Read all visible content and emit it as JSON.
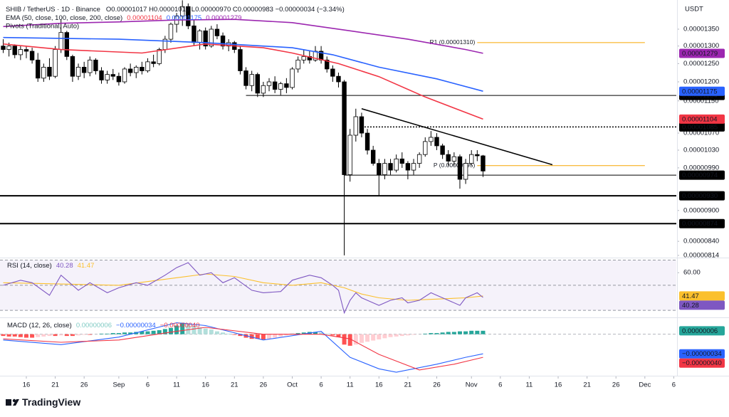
{
  "chart_data": [
    {
      "type": "candlestick",
      "title": "SHIB / TetherUS · 1D · Binance",
      "ohlc_text": "O0.00001017 H0.00001019 L0.00000970 C0.00000983 −0.00000034 (−3.34%)",
      "ema_label": "EMA (50, close, 100, close, 200, close)",
      "pivots_label": "Pivots (Traditional, Auto)",
      "currency": "USDT",
      "log_scale": true,
      "up_color": "#ffffff",
      "down_color": "#000000",
      "ylim": [
        8.1e-06,
        1.441e-05
      ],
      "yticks": [
        {
          "value": 1.35e-05,
          "label": "0.00001350"
        },
        {
          "value": 1.3e-05,
          "label": "0.00001300"
        },
        {
          "value": 1.25e-05,
          "label": "0.00001250"
        },
        {
          "value": 1.2e-05,
          "label": "0.00001200"
        },
        {
          "value": 1.15e-05,
          "label": "0.00001150"
        },
        {
          "value": 1.07e-05,
          "label": "0.00001070"
        },
        {
          "value": 1.03e-05,
          "label": "0.00001030"
        },
        {
          "value": 9.9e-06,
          "label": "0.00000990"
        },
        {
          "value": 9e-06,
          "label": "0.00000900"
        },
        {
          "value": 8.4e-06,
          "label": "0.00000840"
        },
        {
          "value": 8.14e-06,
          "label": "0.00000814"
        }
      ],
      "xticks": [
        {
          "value": 4,
          "label": "16"
        },
        {
          "value": 9,
          "label": "21"
        },
        {
          "value": 14,
          "label": "26"
        },
        {
          "value": 20,
          "label": "Sep"
        },
        {
          "value": 25,
          "label": "6"
        },
        {
          "value": 30,
          "label": "11"
        },
        {
          "value": 35,
          "label": "16"
        },
        {
          "value": 40,
          "label": "21"
        },
        {
          "value": 45,
          "label": "26"
        },
        {
          "value": 50,
          "label": "Oct"
        },
        {
          "value": 55,
          "label": "6"
        },
        {
          "value": 60,
          "label": "11"
        },
        {
          "value": 65,
          "label": "16"
        },
        {
          "value": 70,
          "label": "21"
        },
        {
          "value": 75,
          "label": "26"
        },
        {
          "value": 81,
          "label": "Nov"
        },
        {
          "value": 86,
          "label": "6"
        },
        {
          "value": 91,
          "label": "11"
        },
        {
          "value": 96,
          "label": "16"
        },
        {
          "value": 101,
          "label": "21"
        },
        {
          "value": 106,
          "label": "26"
        },
        {
          "value": 111,
          "label": "Dec"
        },
        {
          "value": 116,
          "label": "6"
        }
      ],
      "candles": [
        [
          1.3e-05,
          1.32e-05,
          1.28e-05,
          1.29e-05
        ],
        [
          1.29e-05,
          1.31e-05,
          1.27e-05,
          1.3e-05
        ],
        [
          1.3e-05,
          1.305e-05,
          1.265e-05,
          1.275e-05
        ],
        [
          1.275e-05,
          1.3e-05,
          1.26e-05,
          1.29e-05
        ],
        [
          1.29e-05,
          1.3e-05,
          1.265e-05,
          1.285e-05
        ],
        [
          1.285e-05,
          1.295e-05,
          1.25e-05,
          1.26e-05
        ],
        [
          1.26e-05,
          1.28e-05,
          1.2e-05,
          1.21e-05
        ],
        [
          1.21e-05,
          1.25e-05,
          1.2e-05,
          1.24e-05
        ],
        [
          1.24e-05,
          1.265e-05,
          1.205e-05,
          1.215e-05
        ],
        [
          1.215e-05,
          1.3e-05,
          1.21e-05,
          1.29e-05
        ],
        [
          1.29e-05,
          1.38e-05,
          1.28e-05,
          1.34e-05
        ],
        [
          1.34e-05,
          1.345e-05,
          1.26e-05,
          1.27e-05
        ],
        [
          1.27e-05,
          1.275e-05,
          1.2e-05,
          1.215e-05
        ],
        [
          1.215e-05,
          1.25e-05,
          1.205e-05,
          1.24e-05
        ],
        [
          1.24e-05,
          1.255e-05,
          1.21e-05,
          1.225e-05
        ],
        [
          1.225e-05,
          1.27e-05,
          1.215e-05,
          1.26e-05
        ],
        [
          1.26e-05,
          1.265e-05,
          1.22e-05,
          1.23e-05
        ],
        [
          1.23e-05,
          1.24e-05,
          1.195e-05,
          1.205e-05
        ],
        [
          1.205e-05,
          1.23e-05,
          1.195e-05,
          1.22e-05
        ],
        [
          1.22e-05,
          1.235e-05,
          1.205e-05,
          1.215e-05
        ],
        [
          1.215e-05,
          1.225e-05,
          1.19e-05,
          1.2e-05
        ],
        [
          1.2e-05,
          1.24e-05,
          1.195e-05,
          1.235e-05
        ],
        [
          1.235e-05,
          1.25e-05,
          1.215e-05,
          1.225e-05
        ],
        [
          1.225e-05,
          1.245e-05,
          1.21e-05,
          1.24e-05
        ],
        [
          1.24e-05,
          1.255e-05,
          1.22e-05,
          1.23e-05
        ],
        [
          1.23e-05,
          1.265e-05,
          1.225e-05,
          1.255e-05
        ],
        [
          1.255e-05,
          1.275e-05,
          1.24e-05,
          1.25e-05
        ],
        [
          1.25e-05,
          1.295e-05,
          1.245e-05,
          1.29e-05
        ],
        [
          1.29e-05,
          1.33e-05,
          1.28e-05,
          1.32e-05
        ],
        [
          1.32e-05,
          1.37e-05,
          1.31e-05,
          1.365e-05
        ],
        [
          1.365e-05,
          1.4e-05,
          1.34e-05,
          1.39e-05
        ],
        [
          1.39e-05,
          1.44e-05,
          1.36e-05,
          1.42e-05
        ],
        [
          1.42e-05,
          1.43e-05,
          1.35e-05,
          1.36e-05
        ],
        [
          1.36e-05,
          1.38e-05,
          1.3e-05,
          1.31e-05
        ],
        [
          1.31e-05,
          1.35e-05,
          1.29e-05,
          1.345e-05
        ],
        [
          1.345e-05,
          1.355e-05,
          1.29e-05,
          1.3e-05
        ],
        [
          1.3e-05,
          1.36e-05,
          1.295e-05,
          1.35e-05
        ],
        [
          1.35e-05,
          1.365e-05,
          1.32e-05,
          1.33e-05
        ],
        [
          1.33e-05,
          1.34e-05,
          1.29e-05,
          1.3e-05
        ],
        [
          1.3e-05,
          1.32e-05,
          1.285e-05,
          1.31e-05
        ],
        [
          1.31e-05,
          1.315e-05,
          1.28e-05,
          1.29e-05
        ],
        [
          1.29e-05,
          1.3e-05,
          1.22e-05,
          1.23e-05
        ],
        [
          1.23e-05,
          1.24e-05,
          1.18e-05,
          1.19e-05
        ],
        [
          1.19e-05,
          1.23e-05,
          1.175e-05,
          1.22e-05
        ],
        [
          1.22e-05,
          1.225e-05,
          1.16e-05,
          1.17e-05
        ],
        [
          1.17e-05,
          1.2e-05,
          1.16e-05,
          1.19e-05
        ],
        [
          1.19e-05,
          1.21e-05,
          1.175e-05,
          1.2e-05
        ],
        [
          1.2e-05,
          1.215e-05,
          1.17e-05,
          1.18e-05
        ],
        [
          1.18e-05,
          1.2e-05,
          1.165e-05,
          1.195e-05
        ],
        [
          1.195e-05,
          1.21e-05,
          1.17e-05,
          1.185e-05
        ],
        [
          1.185e-05,
          1.24e-05,
          1.18e-05,
          1.235e-05
        ],
        [
          1.235e-05,
          1.27e-05,
          1.225e-05,
          1.26e-05
        ],
        [
          1.26e-05,
          1.29e-05,
          1.25e-05,
          1.27e-05
        ],
        [
          1.27e-05,
          1.285e-05,
          1.25e-05,
          1.26e-05
        ],
        [
          1.26e-05,
          1.3e-05,
          1.255e-05,
          1.285e-05
        ],
        [
          1.285e-05,
          1.3e-05,
          1.25e-05,
          1.26e-05
        ],
        [
          1.26e-05,
          1.27e-05,
          1.225e-05,
          1.235e-05
        ],
        [
          1.235e-05,
          1.245e-05,
          1.2e-05,
          1.215e-05
        ],
        [
          1.215e-05,
          1.225e-05,
          1.185e-05,
          1.2e-05
        ],
        [
          1.2e-05,
          1.205e-05,
          8.14e-06,
          9.75e-06
        ],
        [
          9.75e-06,
          1.08e-05,
          9.6e-06,
          1.065e-05
        ],
        [
          1.065e-05,
          1.13e-05,
          1.05e-05,
          1.11e-05
        ],
        [
          1.11e-05,
          1.12e-05,
          1.06e-05,
          1.07e-05
        ],
        [
          1.07e-05,
          1.08e-05,
          1.02e-05,
          1.03e-05
        ],
        [
          1.03e-05,
          1.04e-05,
          9.95e-06,
          1e-05
        ],
        [
          1e-05,
          1.01e-05,
          9.3e-06,
          9.75e-06
        ],
        [
          9.75e-06,
          1.01e-05,
          9.65e-06,
          1e-05
        ],
        [
          1e-05,
          1.01e-05,
          9.75e-06,
          9.85e-06
        ],
        [
          9.85e-06,
          1.02e-05,
          9.8e-06,
          1.01e-05
        ],
        [
          1.01e-05,
          1.025e-05,
          9.9e-06,
          1e-05
        ],
        [
          1e-05,
          1.005e-05,
          9.65e-06,
          9.85e-06
        ],
        [
          9.85e-06,
          1.01e-05,
          9.75e-06,
          1e-05
        ],
        [
          1e-05,
          1.025e-05,
          9.9e-06,
          1.02e-05
        ],
        [
          1.02e-05,
          1.06e-05,
          1.015e-05,
          1.05e-05
        ],
        [
          1.05e-05,
          1.075e-05,
          1.04e-05,
          1.06e-05
        ],
        [
          1.06e-05,
          1.07e-05,
          1.03e-05,
          1.04e-05
        ],
        [
          1.04e-05,
          1.045e-05,
          1.01e-05,
          1.02e-05
        ],
        [
          1.02e-05,
          1.03e-05,
          9.95e-06,
          1.005e-05
        ],
        [
          1.005e-05,
          1.025e-05,
          9.95e-06,
          1.015e-05
        ],
        [
          1.015e-05,
          1.02e-05,
          9.45e-06,
          9.65e-06
        ],
        [
          9.65e-06,
          1.01e-05,
          9.55e-06,
          1e-05
        ],
        [
          1e-05,
          1.03e-05,
          9.95e-06,
          1.02e-05
        ],
        [
          1.02e-05,
          1.03e-05,
          1.005e-05,
          1.017e-05
        ],
        [
          1.017e-05,
          1.019e-05,
          9.7e-06,
          9.83e-06
        ]
      ],
      "series": [
        {
          "label": "0.00001104",
          "color": "#f23645",
          "x": [
            0,
            10,
            24,
            35,
            45,
            50,
            58,
            65,
            73,
            83
          ],
          "values": [
            1.306e-05,
            1.29e-05,
            1.28e-05,
            1.306e-05,
            1.295e-05,
            1.28e-05,
            1.25e-05,
            1.214e-05,
            1.16e-05,
            1.104e-05
          ]
        },
        {
          "label": "0.00001175",
          "color": "#2962ff",
          "x": [
            0,
            20,
            35,
            50,
            57,
            65,
            75,
            83
          ],
          "values": [
            1.325e-05,
            1.32e-05,
            1.31e-05,
            1.295e-05,
            1.275e-05,
            1.24e-05,
            1.208e-05,
            1.175e-05
          ]
        },
        {
          "label": "0.00001279",
          "color": "#9c27b0",
          "x": [
            0,
            10,
            20,
            30,
            40,
            50,
            60,
            70,
            80,
            83
          ],
          "values": [
            1.358e-05,
            1.368e-05,
            1.372e-05,
            1.378e-05,
            1.38e-05,
            1.37e-05,
            1.345e-05,
            1.32e-05,
            1.29e-05,
            1.279e-05
          ]
        }
      ],
      "levels": [
        {
          "value": 1.164e-05,
          "label": "0.00001164",
          "start": 42,
          "style": "solid",
          "width": 1
        },
        {
          "value": 1.085e-05,
          "label": "0.00001085",
          "start": 62,
          "style": "dotted",
          "width": 1.5
        },
        {
          "value": 9.74e-06,
          "label": "0.00000974",
          "start": 59,
          "style": "solid",
          "width": 1
        },
        {
          "value": 9.3e-06,
          "label": "0.00000930",
          "style": "solid",
          "width": 2
        },
        {
          "value": 8.74e-06,
          "label": "0.00000874",
          "style": "solid",
          "width": 2
        }
      ],
      "pivots": [
        {
          "label": "R1 (0.00001310)",
          "value": 1.31e-05,
          "x": [
            82,
            111
          ],
          "color": "#f7a600"
        },
        {
          "label": "P (0.00000995)",
          "value": 9.95e-06,
          "x": [
            82,
            111
          ],
          "color": "#f7a600"
        }
      ],
      "trendline": {
        "x": [
          62,
          95
        ],
        "values": [
          1.13e-05,
          9.97e-06
        ]
      }
    },
    {
      "type": "rsi",
      "title": "RSI (14, close)",
      "ylim": [
        25,
        72
      ],
      "yticks": [
        {
          "value": 60,
          "label": "60.00"
        }
      ],
      "bands": [
        70,
        50,
        30
      ],
      "series": [
        {
          "label": "40.28",
          "color": "#7e57c2",
          "x": [
            0,
            3,
            5,
            8,
            10,
            13,
            15,
            18,
            20,
            23,
            25,
            28,
            30,
            32,
            34,
            36,
            38,
            40,
            43,
            45,
            48,
            50,
            53,
            55,
            57,
            58,
            59,
            60,
            61,
            62,
            64,
            65,
            67,
            69,
            70,
            72,
            74,
            75,
            77,
            79,
            80,
            82,
            83
          ],
          "values": [
            50,
            54,
            52,
            42,
            58,
            46,
            52,
            44,
            48,
            52,
            50,
            58,
            64,
            68,
            58,
            60,
            52,
            56,
            46,
            44,
            45,
            54,
            58,
            56,
            50,
            46,
            28,
            38,
            44,
            40,
            36,
            34,
            38,
            40,
            36,
            38,
            44,
            42,
            38,
            34,
            40,
            44,
            40.28
          ]
        },
        {
          "label": "41.47",
          "color": "#fbc02d",
          "x": [
            0,
            10,
            20,
            30,
            35,
            40,
            45,
            50,
            55,
            59,
            62,
            65,
            70,
            75,
            80,
            83
          ],
          "values": [
            52,
            51,
            50,
            56,
            59,
            57,
            52,
            50,
            52,
            48,
            43,
            40,
            38,
            39,
            40,
            41.47
          ]
        }
      ]
    },
    {
      "type": "macd",
      "title": "MACD (12, 26, close)",
      "ylim": [
        -7.2e-07,
        2.8e-07
      ],
      "histogram": {
        "label": "0.00000006",
        "color": "#26a69a",
        "light_color": "#b2dfdb",
        "neg_color": "#ff5252",
        "neg_light_color": "#ffcdd2",
        "values": [
          -3e-08,
          -4e-08,
          -4e-08,
          -5e-08,
          -6e-08,
          -6e-08,
          -5e-08,
          -4e-08,
          -3e-08,
          -3e-08,
          -2e-08,
          -3e-08,
          -3e-08,
          -2e-08,
          -1e-08,
          -1e-08,
          0,
          1e-08,
          1e-08,
          2e-08,
          2e-08,
          3e-08,
          3e-08,
          4e-08,
          5e-08,
          5e-08,
          6e-08,
          7e-08,
          9e-08,
          1.1e-07,
          1.5e-07,
          2e-07,
          1.8e-07,
          1.5e-07,
          1.2e-07,
          1e-07,
          8e-08,
          5e-08,
          3e-08,
          1e-08,
          -1e-08,
          -3e-08,
          -6e-08,
          -8e-08,
          -8e-08,
          -9e-08,
          -8e-08,
          -6e-08,
          -4e-08,
          -2e-08,
          1e-08,
          2e-08,
          3e-08,
          4e-08,
          4e-08,
          3e-08,
          1e-08,
          -2e-08,
          -5e-08,
          -1.8e-07,
          -2e-07,
          -1.8e-07,
          -1.5e-07,
          -1.3e-07,
          -1.1e-07,
          -9e-08,
          -7e-08,
          -5e-08,
          -4e-08,
          -3e-08,
          -2e-08,
          -1e-08,
          0,
          1e-08,
          2e-08,
          2e-08,
          3e-08,
          4e-08,
          4e-08,
          5e-08,
          5e-08,
          6e-08,
          6e-08,
          6e-08
        ]
      },
      "series": [
        {
          "label": "−0.00000034",
          "color": "#2962ff",
          "x": [
            0,
            10,
            20,
            30,
            35,
            45,
            55,
            60,
            65,
            68,
            75,
            80,
            83
          ],
          "values": [
            -1e-07,
            -1.8e-07,
            -5e-08,
            2e-07,
            1.5e-07,
            -1e-07,
            5e-08,
            -4e-07,
            -6e-07,
            -6.6e-07,
            -5.2e-07,
            -4e-07,
            -3.4e-07
          ]
        },
        {
          "label": "−0.00000040",
          "color": "#f23645",
          "x": [
            0,
            10,
            20,
            30,
            35,
            45,
            55,
            60,
            65,
            72,
            78,
            83
          ],
          "values": [
            -8e-08,
            -1.4e-07,
            -1e-07,
            5e-08,
            1.2e-07,
            0,
            0,
            -8e-08,
            -3.5e-07,
            -6.2e-07,
            -5.2e-07,
            -4e-07
          ]
        }
      ]
    }
  ],
  "branding": "TradingView"
}
